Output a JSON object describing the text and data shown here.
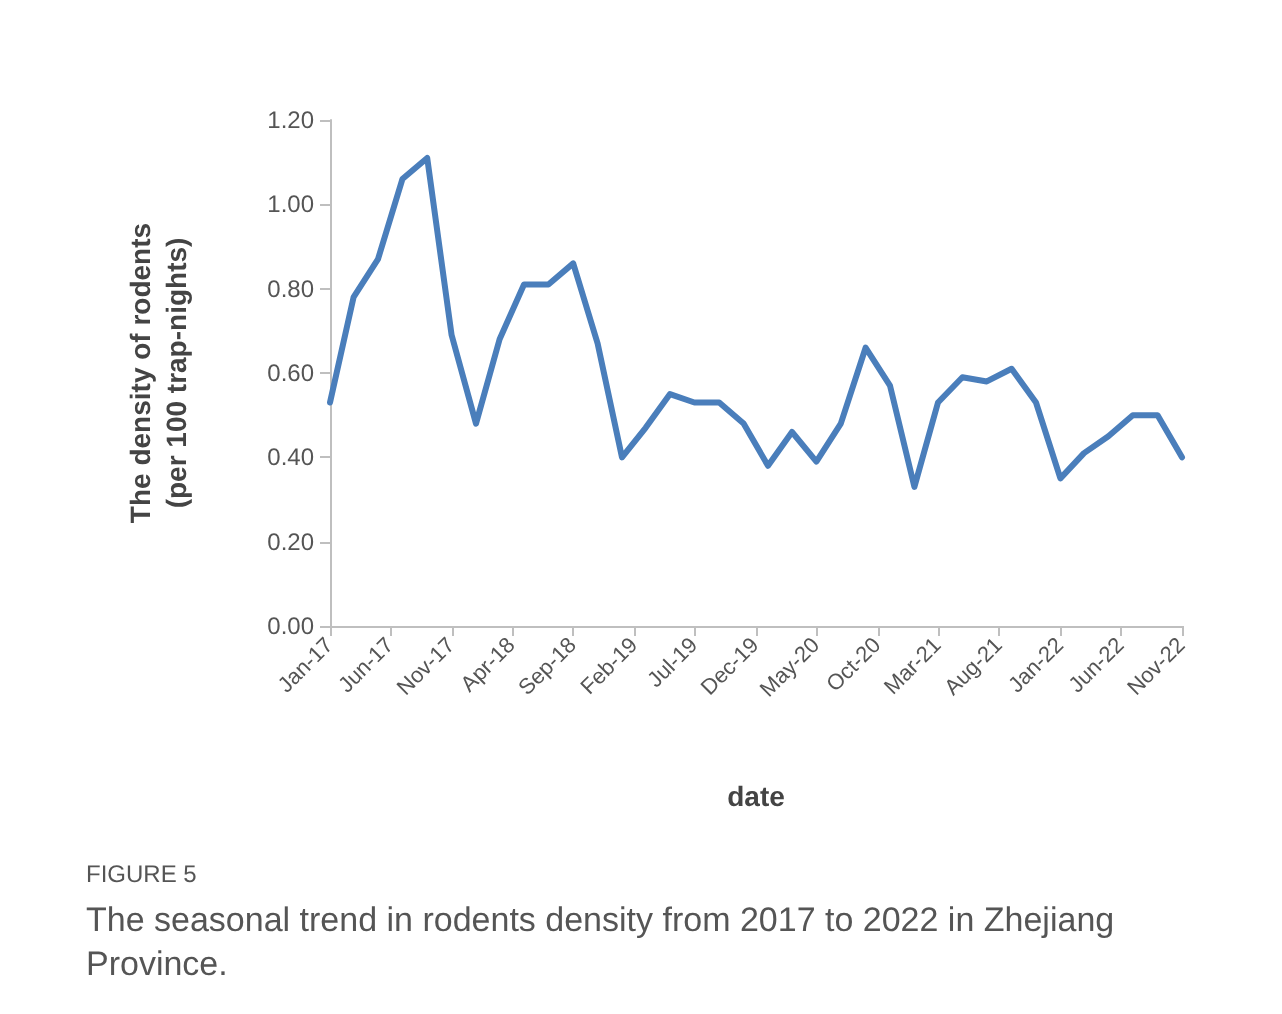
{
  "chart_data": {
    "type": "line",
    "title": "FIGURE 5",
    "subtitle": "The seasonal trend in rodents density from 2017 to 2022 in Zhejiang Province.",
    "xlabel": "date",
    "ylabel": "The density of rodents\n(per 100 trap-nights)",
    "x": [
      "2017-01",
      "2017-03",
      "2017-05",
      "2017-07",
      "2017-09",
      "2017-11",
      "2018-01",
      "2018-03",
      "2018-05",
      "2018-07",
      "2018-09",
      "2018-11",
      "2019-01",
      "2019-03",
      "2019-05",
      "2019-07",
      "2019-09",
      "2019-11",
      "2020-01",
      "2020-03",
      "2020-05",
      "2020-07",
      "2020-09",
      "2020-11",
      "2021-01",
      "2021-03",
      "2021-05",
      "2021-07",
      "2021-09",
      "2021-11",
      "2022-01",
      "2022-03",
      "2022-05",
      "2022-07",
      "2022-09",
      "2022-11"
    ],
    "series": [
      {
        "color": "#4a7ebb",
        "values": [
          0.53,
          0.78,
          0.87,
          1.06,
          1.11,
          0.69,
          0.48,
          0.68,
          0.81,
          0.81,
          0.86,
          0.67,
          0.4,
          0.47,
          0.55,
          0.53,
          0.53,
          0.48,
          0.38,
          0.46,
          0.39,
          0.48,
          0.66,
          0.57,
          0.33,
          0.53,
          0.59,
          0.58,
          0.61,
          0.53,
          0.35,
          0.41,
          0.45,
          0.5,
          0.5,
          0.4
        ]
      }
    ],
    "xlim": [
      "2017-01",
      "2022-11"
    ],
    "xticks": [
      {
        "value": "2017-01",
        "label": "Jan-17"
      },
      {
        "value": "2017-06",
        "label": "Jun-17"
      },
      {
        "value": "2017-11",
        "label": "Nov-17"
      },
      {
        "value": "2018-04",
        "label": "Apr-18"
      },
      {
        "value": "2018-09",
        "label": "Sep-18"
      },
      {
        "value": "2019-02",
        "label": "Feb-19"
      },
      {
        "value": "2019-07",
        "label": "Jul-19"
      },
      {
        "value": "2019-12",
        "label": "Dec-19"
      },
      {
        "value": "2020-05",
        "label": "May-20"
      },
      {
        "value": "2020-10",
        "label": "Oct-20"
      },
      {
        "value": "2021-03",
        "label": "Mar-21"
      },
      {
        "value": "2021-08",
        "label": "Aug-21"
      },
      {
        "value": "2022-01",
        "label": "Jan-22"
      },
      {
        "value": "2022-06",
        "label": "Jun-22"
      },
      {
        "value": "2022-11",
        "label": "Nov-22"
      }
    ],
    "ylim": [
      0,
      1.2
    ],
    "yticks": [
      {
        "value": 0,
        "label": "0.00"
      },
      {
        "value": 0.2,
        "label": "0.20"
      },
      {
        "value": 0.4,
        "label": "0.40"
      },
      {
        "value": 0.6,
        "label": "0.60"
      },
      {
        "value": 0.8,
        "label": "0.80"
      },
      {
        "value": 1,
        "label": "1.00"
      },
      {
        "value": 1.2,
        "label": "1.20"
      }
    ],
    "grid": false,
    "marker": "none",
    "line_style": "solid"
  }
}
